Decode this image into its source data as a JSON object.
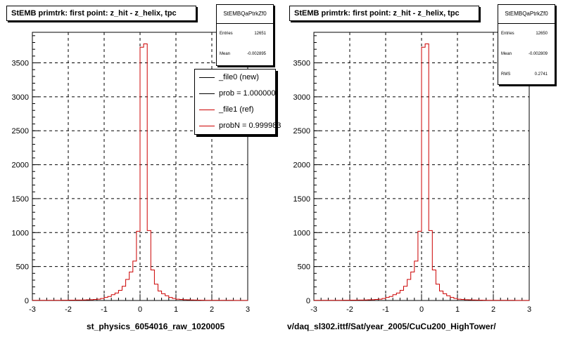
{
  "panels": [
    {
      "title": "StEMB primtrk: first point: z_hit - z_helix, tpc",
      "xlabel": "st_physics_6054016_raw_1020005",
      "stats": {
        "title": "StEMBQaPtrkZf0",
        "rows": [
          {
            "key": "Entries",
            "value": "12651"
          },
          {
            "key": "Mean",
            "value": "-0.002895"
          }
        ]
      },
      "legend": [
        {
          "label": "_file0 (new)",
          "color": "#000000"
        },
        {
          "label": "prob = 1.000000",
          "color": "#000000"
        },
        {
          "label": "_file1 (ref)",
          "color": "#cc0000"
        },
        {
          "label": "probN = 0.999983",
          "color": "#cc0000"
        }
      ]
    },
    {
      "title": "StEMB primtrk: first point: z_hit - z_helix, tpc",
      "xlabel": "v/daq_sl302.ittf/Sat/year_2005/CuCu200_HighTower/",
      "stats": {
        "title": "StEMBQaPtrkZf0",
        "rows": [
          {
            "key": "Entries",
            "value": "12650"
          },
          {
            "key": "Mean",
            "value": "-0.002809"
          },
          {
            "key": "RMS",
            "value": "0.2741"
          }
        ]
      },
      "legend": []
    }
  ],
  "chart_data": [
    {
      "type": "histogram",
      "title": "StEMB primtrk: first point: z_hit - z_helix, tpc",
      "xlabel": "st_physics_6054016_raw_1020005",
      "xlim": [
        -3,
        3
      ],
      "ylim": [
        0,
        3950
      ],
      "x_ticks": [
        "-3",
        "-2",
        "-1",
        "0",
        "1",
        "2",
        "3"
      ],
      "y_ticks": [
        "0",
        "500",
        "1000",
        "1500",
        "2000",
        "2500",
        "3000",
        "3500"
      ],
      "grid": true,
      "bin_width": 0.1,
      "series": [
        {
          "name": "_file1 (ref)",
          "color": "#cc0000",
          "bins": [
            [
              -3.0,
              2
            ],
            [
              -2.9,
              2
            ],
            [
              -2.8,
              2
            ],
            [
              -2.7,
              2
            ],
            [
              -2.6,
              3
            ],
            [
              -2.5,
              3
            ],
            [
              -2.4,
              3
            ],
            [
              -2.3,
              3
            ],
            [
              -2.2,
              4
            ],
            [
              -2.1,
              4
            ],
            [
              -2.0,
              5
            ],
            [
              -1.9,
              5
            ],
            [
              -1.8,
              6
            ],
            [
              -1.7,
              7
            ],
            [
              -1.6,
              8
            ],
            [
              -1.5,
              10
            ],
            [
              -1.4,
              12
            ],
            [
              -1.3,
              15
            ],
            [
              -1.2,
              20
            ],
            [
              -1.1,
              30
            ],
            [
              -1.0,
              45
            ],
            [
              -0.9,
              60
            ],
            [
              -0.8,
              85
            ],
            [
              -0.7,
              110
            ],
            [
              -0.6,
              150
            ],
            [
              -0.5,
              210
            ],
            [
              -0.4,
              310
            ],
            [
              -0.3,
              420
            ],
            [
              -0.2,
              580
            ],
            [
              -0.1,
              1020
            ],
            [
              0.0,
              3730
            ],
            [
              0.1,
              3780
            ],
            [
              0.2,
              1030
            ],
            [
              0.3,
              450
            ],
            [
              0.4,
              240
            ],
            [
              0.5,
              140
            ],
            [
              0.6,
              100
            ],
            [
              0.7,
              70
            ],
            [
              0.8,
              45
            ],
            [
              0.9,
              30
            ],
            [
              1.0,
              20
            ],
            [
              1.1,
              15
            ],
            [
              1.2,
              12
            ],
            [
              1.3,
              10
            ],
            [
              1.4,
              8
            ],
            [
              1.5,
              6
            ],
            [
              1.6,
              5
            ],
            [
              1.7,
              4
            ],
            [
              1.8,
              3
            ],
            [
              1.9,
              3
            ],
            [
              2.0,
              3
            ],
            [
              2.1,
              2
            ],
            [
              2.2,
              2
            ],
            [
              2.3,
              2
            ],
            [
              2.4,
              2
            ],
            [
              2.5,
              2
            ],
            [
              2.6,
              1
            ],
            [
              2.7,
              1
            ],
            [
              2.8,
              1
            ],
            [
              2.9,
              1
            ]
          ]
        }
      ]
    },
    {
      "type": "histogram",
      "title": "StEMB primtrk: first point: z_hit - z_helix, tpc",
      "xlabel": "v/daq_sl302.ittf/Sat/year_2005/CuCu200_HighTower/",
      "xlim": [
        -3,
        3
      ],
      "ylim": [
        0,
        3950
      ],
      "x_ticks": [
        "-3",
        "-2",
        "-1",
        "0",
        "1",
        "2",
        "3"
      ],
      "y_ticks": [
        "0",
        "500",
        "1000",
        "1500",
        "2000",
        "2500",
        "3000",
        "3500"
      ],
      "grid": true,
      "bin_width": 0.1,
      "series": [
        {
          "name": "",
          "color": "#cc0000",
          "bins": [
            [
              -3.0,
              2
            ],
            [
              -2.9,
              2
            ],
            [
              -2.8,
              2
            ],
            [
              -2.7,
              2
            ],
            [
              -2.6,
              3
            ],
            [
              -2.5,
              3
            ],
            [
              -2.4,
              3
            ],
            [
              -2.3,
              3
            ],
            [
              -2.2,
              4
            ],
            [
              -2.1,
              4
            ],
            [
              -2.0,
              5
            ],
            [
              -1.9,
              5
            ],
            [
              -1.8,
              6
            ],
            [
              -1.7,
              7
            ],
            [
              -1.6,
              8
            ],
            [
              -1.5,
              10
            ],
            [
              -1.4,
              12
            ],
            [
              -1.3,
              15
            ],
            [
              -1.2,
              20
            ],
            [
              -1.1,
              30
            ],
            [
              -1.0,
              45
            ],
            [
              -0.9,
              60
            ],
            [
              -0.8,
              85
            ],
            [
              -0.7,
              110
            ],
            [
              -0.6,
              150
            ],
            [
              -0.5,
              210
            ],
            [
              -0.4,
              310
            ],
            [
              -0.3,
              420
            ],
            [
              -0.2,
              580
            ],
            [
              -0.1,
              1020
            ],
            [
              0.0,
              3730
            ],
            [
              0.1,
              3780
            ],
            [
              0.2,
              1030
            ],
            [
              0.3,
              450
            ],
            [
              0.4,
              240
            ],
            [
              0.5,
              140
            ],
            [
              0.6,
              100
            ],
            [
              0.7,
              70
            ],
            [
              0.8,
              45
            ],
            [
              0.9,
              30
            ],
            [
              1.0,
              20
            ],
            [
              1.1,
              15
            ],
            [
              1.2,
              12
            ],
            [
              1.3,
              10
            ],
            [
              1.4,
              8
            ],
            [
              1.5,
              6
            ],
            [
              1.6,
              5
            ],
            [
              1.7,
              4
            ],
            [
              1.8,
              3
            ],
            [
              1.9,
              3
            ],
            [
              2.0,
              3
            ],
            [
              2.1,
              2
            ],
            [
              2.2,
              2
            ],
            [
              2.3,
              2
            ],
            [
              2.4,
              2
            ],
            [
              2.5,
              2
            ],
            [
              2.6,
              1
            ],
            [
              2.7,
              1
            ],
            [
              2.8,
              1
            ],
            [
              2.9,
              1
            ]
          ]
        }
      ]
    }
  ]
}
